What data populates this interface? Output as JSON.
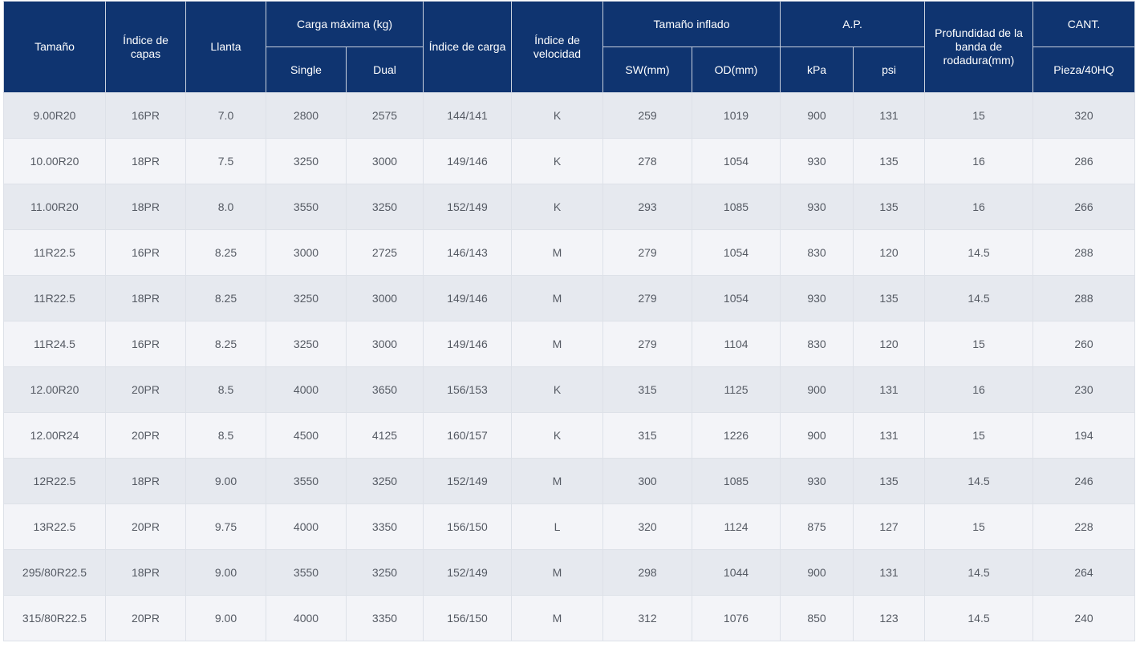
{
  "colors": {
    "header_bg": "#0f3470",
    "header_text": "#ffffff",
    "row_odd": "#e6e9ef",
    "row_even": "#f3f4f8",
    "cell_text": "#555a63"
  },
  "headers": {
    "size": "Tamaño",
    "ply": "Índice de capas",
    "rim": "Llanta",
    "max_load": "Carga máxima (kg)",
    "single": "Single",
    "dual": "Dual",
    "load_index": "Índice de carga",
    "speed_index": "Índice de velocidad",
    "inflated_size": "Tamaño inflado",
    "sw": "SW(mm)",
    "od": "OD(mm)",
    "ap": "A.P.",
    "kpa": "kPa",
    "psi": "psi",
    "tread_depth": "Profundidad de la banda de rodadura(mm)",
    "qty": "CANT.",
    "qty_unit": "Pieza/40HQ"
  },
  "rows": [
    [
      "9.00R20",
      "16PR",
      "7.0",
      "2800",
      "2575",
      "144/141",
      "K",
      "259",
      "1019",
      "900",
      "131",
      "15",
      "320"
    ],
    [
      "10.00R20",
      "18PR",
      "7.5",
      "3250",
      "3000",
      "149/146",
      "K",
      "278",
      "1054",
      "930",
      "135",
      "16",
      "286"
    ],
    [
      "11.00R20",
      "18PR",
      "8.0",
      "3550",
      "3250",
      "152/149",
      "K",
      "293",
      "1085",
      "930",
      "135",
      "16",
      "266"
    ],
    [
      "11R22.5",
      "16PR",
      "8.25",
      "3000",
      "2725",
      "146/143",
      "M",
      "279",
      "1054",
      "830",
      "120",
      "14.5",
      "288"
    ],
    [
      "11R22.5",
      "18PR",
      "8.25",
      "3250",
      "3000",
      "149/146",
      "M",
      "279",
      "1054",
      "930",
      "135",
      "14.5",
      "288"
    ],
    [
      "11R24.5",
      "16PR",
      "8.25",
      "3250",
      "3000",
      "149/146",
      "M",
      "279",
      "1104",
      "830",
      "120",
      "15",
      "260"
    ],
    [
      "12.00R20",
      "20PR",
      "8.5",
      "4000",
      "3650",
      "156/153",
      "K",
      "315",
      "1125",
      "900",
      "131",
      "16",
      "230"
    ],
    [
      "12.00R24",
      "20PR",
      "8.5",
      "4500",
      "4125",
      "160/157",
      "K",
      "315",
      "1226",
      "900",
      "131",
      "15",
      "194"
    ],
    [
      "12R22.5",
      "18PR",
      "9.00",
      "3550",
      "3250",
      "152/149",
      "M",
      "300",
      "1085",
      "930",
      "135",
      "14.5",
      "246"
    ],
    [
      "13R22.5",
      "20PR",
      "9.75",
      "4000",
      "3350",
      "156/150",
      "L",
      "320",
      "1124",
      "875",
      "127",
      "15",
      "228"
    ],
    [
      "295/80R22.5",
      "18PR",
      "9.00",
      "3550",
      "3250",
      "152/149",
      "M",
      "298",
      "1044",
      "900",
      "131",
      "14.5",
      "264"
    ],
    [
      "315/80R22.5",
      "20PR",
      "9.00",
      "4000",
      "3350",
      "156/150",
      "M",
      "312",
      "1076",
      "850",
      "123",
      "14.5",
      "240"
    ]
  ]
}
